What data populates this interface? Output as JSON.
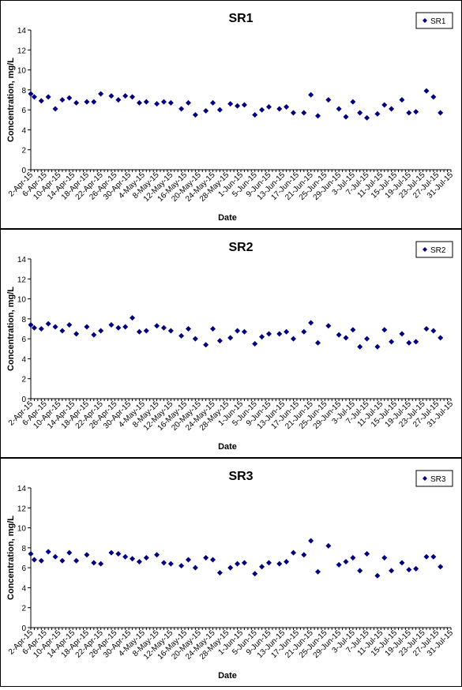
{
  "chart_data": [
    {
      "type": "scatter",
      "title": "SR1",
      "xlabel": "Date",
      "ylabel": "Concentration, mg/L",
      "ylim": [
        0,
        14
      ],
      "yticks": [
        0,
        2,
        4,
        6,
        8,
        10,
        12,
        14
      ],
      "xlim": [
        "2015-04-02",
        "2015-07-31"
      ],
      "xtick_labels": [
        "2-Apr-15",
        "6-Apr-15",
        "10-Apr-15",
        "14-Apr-15",
        "18-Apr-15",
        "22-Apr-15",
        "26-Apr-15",
        "30-Apr-15",
        "4-May-15",
        "8-May-15",
        "12-May-15",
        "16-May-15",
        "20-May-15",
        "24-May-15",
        "28-May-15",
        "1-Jun-15",
        "5-Jun-15",
        "9-Jun-15",
        "13-Jun-15",
        "17-Jun-15",
        "21-Jun-15",
        "25-Jun-15",
        "29-Jun-15",
        "3-Jul-15",
        "7-Jul-15",
        "11-Jul-15",
        "15-Jul-15",
        "19-Jul-15",
        "23-Jul-15",
        "27-Jul-15",
        "31-Jul-15"
      ],
      "grid": false,
      "legend": "top-right",
      "series": [
        {
          "name": "SR1",
          "color": "#000080",
          "marker": "diamond",
          "points": [
            [
              "2015-04-02",
              7.6
            ],
            [
              "2015-04-03",
              7.3
            ],
            [
              "2015-04-05",
              6.9
            ],
            [
              "2015-04-07",
              7.3
            ],
            [
              "2015-04-09",
              6.1
            ],
            [
              "2015-04-11",
              7.0
            ],
            [
              "2015-04-13",
              7.2
            ],
            [
              "2015-04-15",
              6.7
            ],
            [
              "2015-04-18",
              6.8
            ],
            [
              "2015-04-20",
              6.8
            ],
            [
              "2015-04-22",
              7.6
            ],
            [
              "2015-04-25",
              7.4
            ],
            [
              "2015-04-27",
              7.0
            ],
            [
              "2015-04-29",
              7.4
            ],
            [
              "2015-05-01",
              7.3
            ],
            [
              "2015-05-03",
              6.7
            ],
            [
              "2015-05-05",
              6.8
            ],
            [
              "2015-05-08",
              6.6
            ],
            [
              "2015-05-10",
              6.8
            ],
            [
              "2015-05-12",
              6.7
            ],
            [
              "2015-05-15",
              6.1
            ],
            [
              "2015-05-17",
              6.7
            ],
            [
              "2015-05-19",
              5.5
            ],
            [
              "2015-05-22",
              5.9
            ],
            [
              "2015-05-24",
              6.7
            ],
            [
              "2015-05-26",
              6.0
            ],
            [
              "2015-05-29",
              6.6
            ],
            [
              "2015-05-31",
              6.4
            ],
            [
              "2015-06-02",
              6.5
            ],
            [
              "2015-06-05",
              5.5
            ],
            [
              "2015-06-07",
              6.0
            ],
            [
              "2015-06-09",
              6.3
            ],
            [
              "2015-06-12",
              6.1
            ],
            [
              "2015-06-14",
              6.3
            ],
            [
              "2015-06-16",
              5.7
            ],
            [
              "2015-06-19",
              5.7
            ],
            [
              "2015-06-21",
              7.5
            ],
            [
              "2015-06-23",
              5.4
            ],
            [
              "2015-06-26",
              7.0
            ],
            [
              "2015-06-29",
              6.1
            ],
            [
              "2015-07-01",
              5.3
            ],
            [
              "2015-07-03",
              6.8
            ],
            [
              "2015-07-05",
              5.7
            ],
            [
              "2015-07-07",
              5.2
            ],
            [
              "2015-07-10",
              5.6
            ],
            [
              "2015-07-12",
              6.5
            ],
            [
              "2015-07-14",
              6.1
            ],
            [
              "2015-07-17",
              7.0
            ],
            [
              "2015-07-19",
              5.7
            ],
            [
              "2015-07-21",
              5.8
            ],
            [
              "2015-07-24",
              7.9
            ],
            [
              "2015-07-26",
              7.3
            ],
            [
              "2015-07-28",
              5.7
            ]
          ]
        }
      ]
    },
    {
      "type": "scatter",
      "title": "SR2",
      "xlabel": "Date",
      "ylabel": "Concentration, mg/L",
      "ylim": [
        0,
        14
      ],
      "yticks": [
        0,
        2,
        4,
        6,
        8,
        10,
        12,
        14
      ],
      "xlim": [
        "2015-04-02",
        "2015-07-31"
      ],
      "xtick_labels": [
        "2-Apr-15",
        "6-Apr-15",
        "10-Apr-15",
        "14-Apr-15",
        "18-Apr-15",
        "22-Apr-15",
        "26-Apr-15",
        "30-Apr-15",
        "4-May-15",
        "8-May-15",
        "12-May-15",
        "16-May-15",
        "20-May-15",
        "24-May-15",
        "28-May-15",
        "1-Jun-15",
        "5-Jun-15",
        "9-Jun-15",
        "13-Jun-15",
        "17-Jun-15",
        "21-Jun-15",
        "25-Jun-15",
        "29-Jun-15",
        "3-Jul-15",
        "7-Jul-15",
        "11-Jul-15",
        "15-Jul-15",
        "19-Jul-15",
        "23-Jul-15",
        "27-Jul-15",
        "31-Jul-15"
      ],
      "grid": false,
      "legend": "top-right",
      "series": [
        {
          "name": "SR2",
          "color": "#000080",
          "marker": "diamond",
          "points": [
            [
              "2015-04-02",
              7.4
            ],
            [
              "2015-04-03",
              7.1
            ],
            [
              "2015-04-05",
              7.0
            ],
            [
              "2015-04-07",
              7.5
            ],
            [
              "2015-04-09",
              7.2
            ],
            [
              "2015-04-11",
              6.8
            ],
            [
              "2015-04-13",
              7.4
            ],
            [
              "2015-04-15",
              6.5
            ],
            [
              "2015-04-18",
              7.2
            ],
            [
              "2015-04-20",
              6.4
            ],
            [
              "2015-04-22",
              6.8
            ],
            [
              "2015-04-25",
              7.4
            ],
            [
              "2015-04-27",
              7.1
            ],
            [
              "2015-04-29",
              7.2
            ],
            [
              "2015-05-01",
              8.1
            ],
            [
              "2015-05-03",
              6.7
            ],
            [
              "2015-05-05",
              6.8
            ],
            [
              "2015-05-08",
              7.3
            ],
            [
              "2015-05-10",
              7.1
            ],
            [
              "2015-05-12",
              6.8
            ],
            [
              "2015-05-15",
              6.3
            ],
            [
              "2015-05-17",
              7.0
            ],
            [
              "2015-05-19",
              6.0
            ],
            [
              "2015-05-22",
              5.4
            ],
            [
              "2015-05-24",
              7.0
            ],
            [
              "2015-05-26",
              5.8
            ],
            [
              "2015-05-29",
              6.1
            ],
            [
              "2015-05-31",
              6.8
            ],
            [
              "2015-06-02",
              6.7
            ],
            [
              "2015-06-05",
              5.5
            ],
            [
              "2015-06-07",
              6.2
            ],
            [
              "2015-06-09",
              6.5
            ],
            [
              "2015-06-12",
              6.5
            ],
            [
              "2015-06-14",
              6.7
            ],
            [
              "2015-06-16",
              6.0
            ],
            [
              "2015-06-19",
              6.7
            ],
            [
              "2015-06-21",
              7.6
            ],
            [
              "2015-06-23",
              5.6
            ],
            [
              "2015-06-26",
              7.3
            ],
            [
              "2015-06-29",
              6.4
            ],
            [
              "2015-07-01",
              6.1
            ],
            [
              "2015-07-03",
              6.9
            ],
            [
              "2015-07-05",
              5.2
            ],
            [
              "2015-07-07",
              6.0
            ],
            [
              "2015-07-10",
              5.2
            ],
            [
              "2015-07-12",
              6.9
            ],
            [
              "2015-07-14",
              5.7
            ],
            [
              "2015-07-17",
              6.5
            ],
            [
              "2015-07-19",
              5.6
            ],
            [
              "2015-07-21",
              5.7
            ],
            [
              "2015-07-24",
              7.0
            ],
            [
              "2015-07-26",
              6.8
            ],
            [
              "2015-07-28",
              6.1
            ]
          ]
        }
      ]
    },
    {
      "type": "scatter",
      "title": "SR3",
      "xlabel": "Date",
      "ylabel": "Concentration, mg/L",
      "ylim": [
        0,
        14
      ],
      "yticks": [
        0,
        2,
        4,
        6,
        8,
        10,
        12,
        14
      ],
      "xlim": [
        "2015-04-02",
        "2015-07-31"
      ],
      "xtick_labels": [
        "2-Apr-15",
        "6-Apr-15",
        "10-Apr-15",
        "14-Apr-15",
        "18-Apr-15",
        "22-Apr-15",
        "26-Apr-15",
        "30-Apr-15",
        "4-May-15",
        "8-May-15",
        "12-May-15",
        "16-May-15",
        "20-May-15",
        "24-May-15",
        "28-May-15",
        "1-Jun-15",
        "5-Jun-15",
        "9-Jun-15",
        "13-Jun-15",
        "17-Jun-15",
        "21-Jun-15",
        "25-Jun-15",
        "29-Jun-15",
        "3-Jul-15",
        "7-Jul-15",
        "11-Jul-15",
        "15-Jul-15",
        "19-Jul-15",
        "23-Jul-15",
        "27-Jul-15",
        "31-Jul-15"
      ],
      "grid": false,
      "legend": "top-right",
      "series": [
        {
          "name": "SR3",
          "color": "#000080",
          "marker": "diamond",
          "points": [
            [
              "2015-04-02",
              7.4
            ],
            [
              "2015-04-03",
              6.8
            ],
            [
              "2015-04-05",
              6.7
            ],
            [
              "2015-04-07",
              7.6
            ],
            [
              "2015-04-09",
              7.1
            ],
            [
              "2015-04-11",
              6.7
            ],
            [
              "2015-04-13",
              7.5
            ],
            [
              "2015-04-15",
              6.7
            ],
            [
              "2015-04-18",
              7.3
            ],
            [
              "2015-04-20",
              6.5
            ],
            [
              "2015-04-22",
              6.4
            ],
            [
              "2015-04-25",
              7.5
            ],
            [
              "2015-04-27",
              7.4
            ],
            [
              "2015-04-29",
              7.1
            ],
            [
              "2015-05-01",
              6.9
            ],
            [
              "2015-05-03",
              6.6
            ],
            [
              "2015-05-05",
              7.0
            ],
            [
              "2015-05-08",
              7.3
            ],
            [
              "2015-05-10",
              6.5
            ],
            [
              "2015-05-12",
              6.4
            ],
            [
              "2015-05-15",
              6.2
            ],
            [
              "2015-05-17",
              6.8
            ],
            [
              "2015-05-19",
              6.0
            ],
            [
              "2015-05-22",
              7.0
            ],
            [
              "2015-05-24",
              6.8
            ],
            [
              "2015-05-26",
              5.5
            ],
            [
              "2015-05-29",
              6.0
            ],
            [
              "2015-05-31",
              6.4
            ],
            [
              "2015-06-02",
              6.5
            ],
            [
              "2015-06-05",
              5.4
            ],
            [
              "2015-06-07",
              6.1
            ],
            [
              "2015-06-09",
              6.5
            ],
            [
              "2015-06-12",
              6.4
            ],
            [
              "2015-06-14",
              6.6
            ],
            [
              "2015-06-16",
              7.5
            ],
            [
              "2015-06-19",
              7.3
            ],
            [
              "2015-06-21",
              8.7
            ],
            [
              "2015-06-23",
              5.6
            ],
            [
              "2015-06-26",
              8.2
            ],
            [
              "2015-06-29",
              6.3
            ],
            [
              "2015-07-01",
              6.6
            ],
            [
              "2015-07-03",
              7.0
            ],
            [
              "2015-07-05",
              5.7
            ],
            [
              "2015-07-07",
              7.4
            ],
            [
              "2015-07-10",
              5.2
            ],
            [
              "2015-07-12",
              7.0
            ],
            [
              "2015-07-14",
              5.7
            ],
            [
              "2015-07-17",
              6.5
            ],
            [
              "2015-07-19",
              5.8
            ],
            [
              "2015-07-21",
              5.9
            ],
            [
              "2015-07-24",
              7.1
            ],
            [
              "2015-07-26",
              7.1
            ],
            [
              "2015-07-28",
              6.1
            ]
          ]
        }
      ]
    }
  ]
}
